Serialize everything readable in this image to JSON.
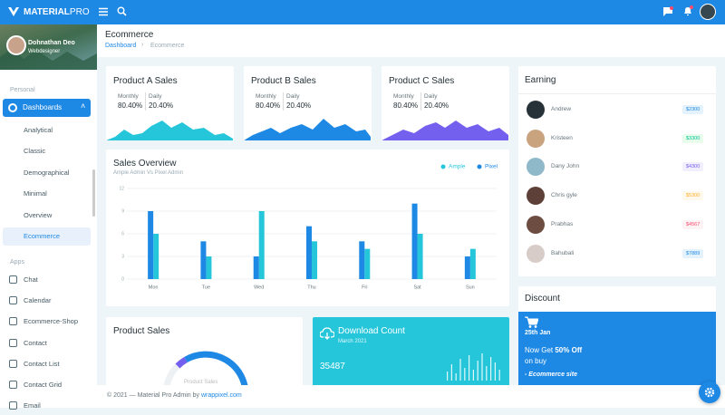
{
  "topbar": {
    "brand_bold": "MATERIAL",
    "brand_light": "PRO"
  },
  "profile": {
    "name": "Dohnathan Deo",
    "role": "Webdesigner"
  },
  "sidebar": {
    "personal_heading": "Personal",
    "dashboards": "Dashboards",
    "dashboard_items": [
      "Analytical",
      "Classic",
      "Demographical",
      "Minimal",
      "Overview",
      "Ecommerce"
    ],
    "apps_heading": "Apps",
    "app_items": [
      "Chat",
      "Calendar",
      "Ecommerce-Shop",
      "Contact",
      "Contact List",
      "Contact Grid",
      "Email"
    ]
  },
  "page": {
    "title": "Ecommerce",
    "breadcrumb": [
      "Dashboard",
      "Ecommerce"
    ]
  },
  "product_cards": [
    {
      "title": "Product A Sales",
      "monthly_label": "Monthly",
      "monthly": "80.40%",
      "daily_label": "Daily",
      "daily": "20.40%"
    },
    {
      "title": "Product B Sales",
      "monthly_label": "Monthly",
      "monthly": "80.40%",
      "daily_label": "Daily",
      "daily": "20.40%"
    },
    {
      "title": "Product C Sales",
      "monthly_label": "Monthly",
      "monthly": "80.40%",
      "daily_label": "Daily",
      "daily": "20.40%"
    }
  ],
  "chart_data": {
    "type": "bar",
    "title": "Sales Overview",
    "subtitle": "Ample Admin Vs Pixel Admin",
    "categories": [
      "Mon",
      "Tue",
      "Wed",
      "Thu",
      "Fri",
      "Sat",
      "Sun"
    ],
    "series": [
      {
        "name": "Ample",
        "color": "#26c6da",
        "values": [
          6,
          3,
          9,
          5,
          4,
          6,
          4
        ]
      },
      {
        "name": "Pixel",
        "color": "#1e88e5",
        "values": [
          9,
          5,
          3,
          7,
          5,
          10,
          3
        ]
      }
    ],
    "ylim": [
      0,
      12
    ],
    "yticks": [
      0,
      3,
      6,
      9,
      12
    ],
    "grid": true,
    "legend": "top-right"
  },
  "earning": {
    "title": "Earning",
    "rows": [
      {
        "name": "Andrew",
        "amount": "$2300"
      },
      {
        "name": "Kristeen",
        "amount": "$3300"
      },
      {
        "name": "Dany John",
        "amount": "$4300"
      },
      {
        "name": "Chris gyle",
        "amount": "$5300"
      },
      {
        "name": "Prabhas",
        "amount": "$4567"
      },
      {
        "name": "Bahubali",
        "amount": "$7889"
      }
    ]
  },
  "product_sales": {
    "title": "Product Sales",
    "donut_label": "Product Sales"
  },
  "download": {
    "title": "Download Count",
    "date": "March 2021",
    "value": "35487"
  },
  "discount": {
    "title": "Discount",
    "date": "25th Jan",
    "line_start": "Now Get",
    "highlight": "50% Off",
    "line_end": "on buy",
    "site": "- Ecommerce site"
  },
  "footer": {
    "text": "© 2021 — Material Pro Admin by",
    "link": "wrappixel.com"
  }
}
